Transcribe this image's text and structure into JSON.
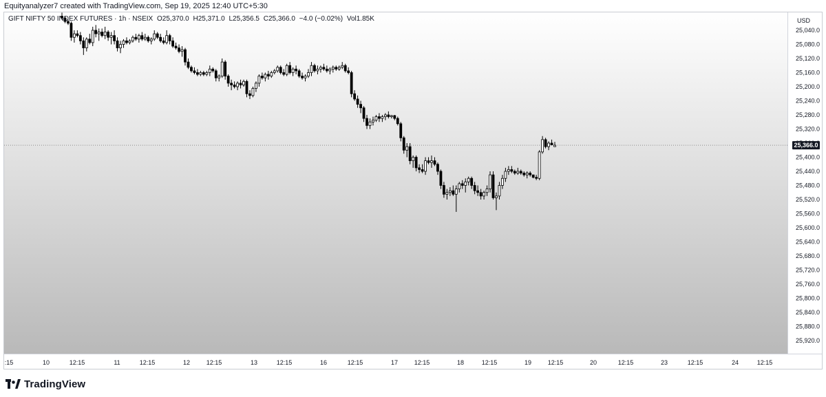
{
  "attribution": "Equityanalyzer7 created with TradingView.com, Sep 19, 2025 12:40 UTC+5:30",
  "legend": {
    "symbol": "GIFT NIFTY 50 INDEX FUTURES · 1h · NSEIX",
    "open": "O25,370.0",
    "high": "H25,371.0",
    "low": "L25,356.5",
    "close": "C25,366.0",
    "change": "−4.0 (−0.02%)",
    "volume": "Vol1.85K"
  },
  "currency": "USD",
  "price_label": "25,366.0",
  "logo_text": "TradingView",
  "colors": {
    "up": "#ffffff",
    "down": "#000000",
    "candle_border": "#000000",
    "price_line": "#555555",
    "label_bg": "#131722"
  },
  "chart_data": {
    "type": "candlestick",
    "title": "GIFT NIFTY 50 INDEX FUTURES · 1h · NSEIX",
    "xlabel": "",
    "ylabel": "",
    "y_axis_inverted": true,
    "ylim": [
      25000,
      25940
    ],
    "yticks": [
      "25,040.0",
      "25,080.0",
      "25,120.0",
      "25,160.0",
      "25,200.0",
      "25,240.0",
      "25,280.0",
      "25,320.0",
      "25,360.0",
      "25,400.0",
      "25,440.0",
      "25,480.0",
      "25,520.0",
      "25,560.0",
      "25,600.0",
      "25,640.0",
      "25,680.0",
      "25,720.0",
      "25,760.0",
      "25,800.0",
      "25,840.0",
      "25,880.0",
      "25,920.0"
    ],
    "xticks": [
      ":15",
      "10",
      "12:15",
      "11",
      "12:15",
      "12",
      "12:15",
      "13",
      "12:15",
      "16",
      "12:15",
      "17",
      "12:15",
      "18",
      "12:15",
      "19",
      "12:15",
      "20",
      "12:15",
      "23",
      "12:15",
      "24",
      "12:15"
    ],
    "last_close": 25366.0,
    "candles": [
      [
        25000,
        25010,
        24990,
        25005
      ],
      [
        25005,
        25020,
        25000,
        25015
      ],
      [
        25015,
        25025,
        25010,
        25020
      ],
      [
        25020,
        25070,
        25015,
        25060
      ],
      [
        25060,
        25075,
        25040,
        25050
      ],
      [
        25050,
        25060,
        25040,
        25055
      ],
      [
        25055,
        25080,
        25045,
        25070
      ],
      [
        25070,
        25110,
        25060,
        25090
      ],
      [
        25090,
        25100,
        25060,
        25065
      ],
      [
        25065,
        25080,
        25050,
        25075
      ],
      [
        25075,
        25085,
        25030,
        25040
      ],
      [
        25040,
        25060,
        25025,
        25050
      ],
      [
        25050,
        25070,
        25035,
        25045
      ],
      [
        25045,
        25060,
        25035,
        25055
      ],
      [
        25055,
        25065,
        25030,
        25045
      ],
      [
        25045,
        25070,
        25040,
        25060
      ],
      [
        25060,
        25080,
        25045,
        25055
      ],
      [
        25055,
        25080,
        25040,
        25070
      ],
      [
        25070,
        25100,
        25060,
        25090
      ],
      [
        25090,
        25105,
        25070,
        25080
      ],
      [
        25080,
        25090,
        25065,
        25070
      ],
      [
        25070,
        25080,
        25060,
        25075
      ],
      [
        25075,
        25080,
        25065,
        25070
      ],
      [
        25070,
        25075,
        25055,
        25060
      ],
      [
        25060,
        25070,
        25050,
        25065
      ],
      [
        25065,
        25075,
        25050,
        25055
      ],
      [
        25055,
        25070,
        25045,
        25065
      ],
      [
        25065,
        25070,
        25050,
        25060
      ],
      [
        25060,
        25075,
        25055,
        25070
      ],
      [
        25070,
        25080,
        25060,
        25065
      ],
      [
        25065,
        25070,
        25040,
        25050
      ],
      [
        25050,
        25065,
        25045,
        25060
      ],
      [
        25060,
        25075,
        25050,
        25070
      ],
      [
        25070,
        25080,
        25060,
        25075
      ],
      [
        25075,
        25080,
        25040,
        25055
      ],
      [
        25055,
        25080,
        25050,
        25070
      ],
      [
        25070,
        25090,
        25060,
        25085
      ],
      [
        25085,
        25095,
        25075,
        25090
      ],
      [
        25090,
        25105,
        25080,
        25100
      ],
      [
        25100,
        25115,
        25085,
        25095
      ],
      [
        25095,
        25140,
        25090,
        25130
      ],
      [
        25130,
        25150,
        25120,
        25145
      ],
      [
        25145,
        25160,
        25140,
        25155
      ],
      [
        25155,
        25165,
        25145,
        25160
      ],
      [
        25160,
        25170,
        25150,
        25165
      ],
      [
        25165,
        25170,
        25155,
        25160
      ],
      [
        25160,
        25170,
        25155,
        25165
      ],
      [
        25165,
        25170,
        25155,
        25160
      ],
      [
        25160,
        25170,
        25140,
        25150
      ],
      [
        25150,
        25160,
        25145,
        25155
      ],
      [
        25155,
        25185,
        25150,
        25175
      ],
      [
        25175,
        25185,
        25165,
        25170
      ],
      [
        25170,
        25175,
        25120,
        25130
      ],
      [
        25130,
        25180,
        25125,
        25170
      ],
      [
        25170,
        25200,
        25165,
        25190
      ],
      [
        25190,
        25210,
        25180,
        25195
      ],
      [
        25195,
        25205,
        25185,
        25200
      ],
      [
        25200,
        25210,
        25185,
        25190
      ],
      [
        25190,
        25205,
        25180,
        25195
      ],
      [
        25195,
        25200,
        25180,
        25185
      ],
      [
        25185,
        25230,
        25180,
        25220
      ],
      [
        25220,
        25235,
        25210,
        25225
      ],
      [
        25225,
        25230,
        25200,
        25205
      ],
      [
        25205,
        25215,
        25185,
        25190
      ],
      [
        25190,
        25200,
        25165,
        25170
      ],
      [
        25170,
        25180,
        25160,
        25175
      ],
      [
        25175,
        25185,
        25160,
        25165
      ],
      [
        25165,
        25180,
        25155,
        25170
      ],
      [
        25170,
        25175,
        25155,
        25160
      ],
      [
        25160,
        25165,
        25150,
        25155
      ],
      [
        25155,
        25160,
        25140,
        25145
      ],
      [
        25145,
        25165,
        25140,
        25160
      ],
      [
        25160,
        25170,
        25150,
        25165
      ],
      [
        25165,
        25170,
        25135,
        25140
      ],
      [
        25140,
        25165,
        25130,
        25160
      ],
      [
        25160,
        25170,
        25145,
        25150
      ],
      [
        25150,
        25165,
        25140,
        25155
      ],
      [
        25155,
        25175,
        25150,
        25170
      ],
      [
        25170,
        25180,
        25160,
        25175
      ],
      [
        25175,
        25185,
        25165,
        25170
      ],
      [
        25170,
        25175,
        25150,
        25160
      ],
      [
        25160,
        25170,
        25130,
        25140
      ],
      [
        25140,
        25160,
        25135,
        25155
      ],
      [
        25155,
        25165,
        25140,
        25150
      ],
      [
        25150,
        25160,
        25140,
        25145
      ],
      [
        25145,
        25155,
        25135,
        25150
      ],
      [
        25150,
        25160,
        25140,
        25155
      ],
      [
        25155,
        25165,
        25145,
        25150
      ],
      [
        25150,
        25160,
        25140,
        25145
      ],
      [
        25145,
        25155,
        25140,
        25150
      ],
      [
        25150,
        25155,
        25140,
        25145
      ],
      [
        25145,
        25150,
        25130,
        25140
      ],
      [
        25140,
        25160,
        25135,
        25155
      ],
      [
        25155,
        25165,
        25145,
        25160
      ],
      [
        25160,
        25230,
        25155,
        25220
      ],
      [
        25220,
        25240,
        25210,
        25235
      ],
      [
        25235,
        25260,
        25225,
        25250
      ],
      [
        25250,
        25275,
        25240,
        25260
      ],
      [
        25260,
        25300,
        25255,
        25290
      ],
      [
        25290,
        25320,
        25280,
        25310
      ],
      [
        25310,
        25320,
        25290,
        25300
      ],
      [
        25300,
        25310,
        25285,
        25295
      ],
      [
        25295,
        25300,
        25280,
        25285
      ],
      [
        25285,
        25300,
        25275,
        25290
      ],
      [
        25290,
        25300,
        25280,
        25285
      ],
      [
        25285,
        25295,
        25275,
        25280
      ],
      [
        25280,
        25290,
        25270,
        25285
      ],
      [
        25285,
        25290,
        25280,
        25282
      ],
      [
        25282,
        25295,
        25280,
        25290
      ],
      [
        25290,
        25310,
        25285,
        25305
      ],
      [
        25305,
        25355,
        25300,
        25345
      ],
      [
        25345,
        25390,
        25340,
        25380
      ],
      [
        25380,
        25400,
        25360,
        25370
      ],
      [
        25370,
        25420,
        25360,
        25410
      ],
      [
        25410,
        25430,
        25395,
        25400
      ],
      [
        25400,
        25440,
        25395,
        25430
      ],
      [
        25430,
        25445,
        25420,
        25435
      ],
      [
        25435,
        25445,
        25420,
        25440
      ],
      [
        25440,
        25450,
        25400,
        25410
      ],
      [
        25410,
        25420,
        25400,
        25415
      ],
      [
        25415,
        25430,
        25395,
        25410
      ],
      [
        25410,
        25425,
        25400,
        25420
      ],
      [
        25420,
        25450,
        25415,
        25440
      ],
      [
        25440,
        25490,
        25435,
        25480
      ],
      [
        25480,
        25515,
        25470,
        25505
      ],
      [
        25505,
        25520,
        25490,
        25500
      ],
      [
        25500,
        25510,
        25485,
        25495
      ],
      [
        25495,
        25510,
        25480,
        25505
      ],
      [
        25505,
        25555,
        25480,
        25490
      ],
      [
        25490,
        25500,
        25470,
        25475
      ],
      [
        25475,
        25490,
        25465,
        25480
      ],
      [
        25480,
        25500,
        25460,
        25470
      ],
      [
        25470,
        25480,
        25455,
        25460
      ],
      [
        25460,
        25490,
        25455,
        25480
      ],
      [
        25480,
        25505,
        25470,
        25495
      ],
      [
        25495,
        25510,
        25480,
        25500
      ],
      [
        25500,
        25520,
        25490,
        25510
      ],
      [
        25510,
        25520,
        25495,
        25500
      ],
      [
        25500,
        25510,
        25480,
        25490
      ],
      [
        25490,
        25500,
        25440,
        25450
      ],
      [
        25450,
        25520,
        25440,
        25515
      ],
      [
        25515,
        25550,
        25500,
        25510
      ],
      [
        25510,
        25520,
        25470,
        25480
      ],
      [
        25480,
        25490,
        25450,
        25460
      ],
      [
        25460,
        25470,
        25430,
        25440
      ],
      [
        25440,
        25450,
        25425,
        25435
      ],
      [
        25435,
        25445,
        25425,
        25440
      ],
      [
        25440,
        25450,
        25435,
        25445
      ],
      [
        25445,
        25450,
        25430,
        25440
      ],
      [
        25440,
        25450,
        25435,
        25445
      ],
      [
        25445,
        25455,
        25440,
        25450
      ],
      [
        25450,
        25460,
        25440,
        25445
      ],
      [
        25445,
        25455,
        25440,
        25450
      ],
      [
        25450,
        25460,
        25450,
        25457
      ],
      [
        25457,
        25465,
        25450,
        25460
      ],
      [
        25460,
        25465,
        25380,
        25385
      ],
      [
        25385,
        25390,
        25340,
        25350
      ],
      [
        25350,
        25375,
        25345,
        25370
      ],
      [
        25370,
        25380,
        25355,
        25360
      ],
      [
        25360,
        25366,
        25350,
        25365
      ],
      [
        25370,
        25371,
        25356.5,
        25366
      ]
    ]
  }
}
